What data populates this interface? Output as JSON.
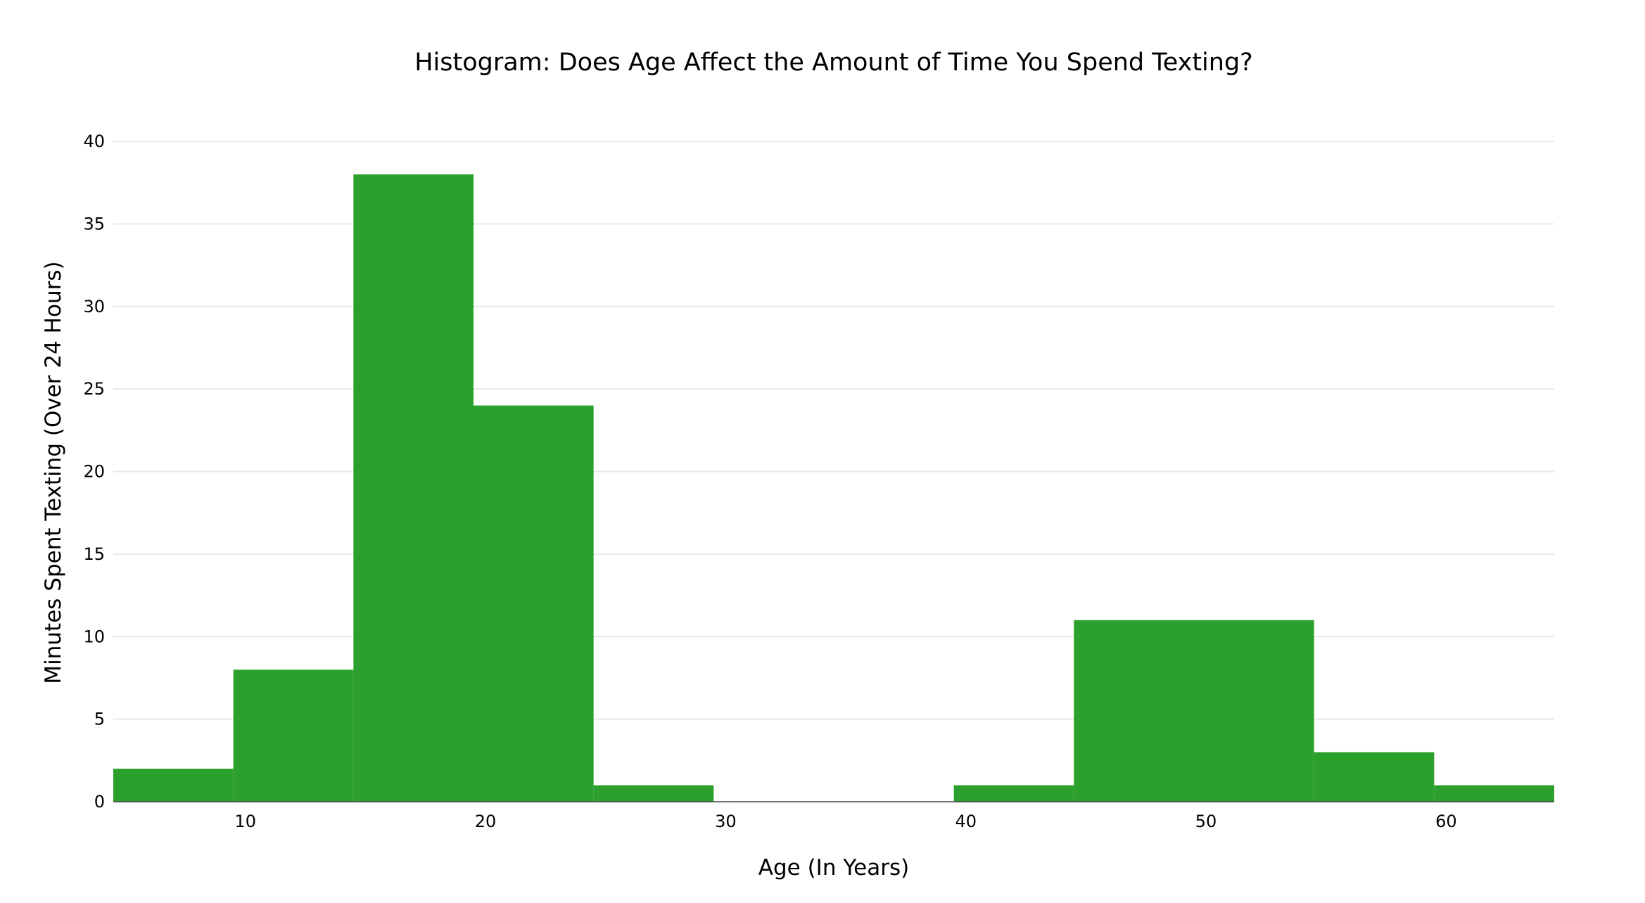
{
  "chart_data": {
    "type": "bar",
    "title": "Histogram: Does Age Affect the Amount of Time You Spend Texting?",
    "xlabel": "Age (In Years)",
    "ylabel": "Minutes Spent Texting (Over 24 Hours)",
    "xlim": [
      4.5,
      64.5
    ],
    "ylim": [
      0,
      40
    ],
    "x_ticks": [
      10,
      20,
      30,
      40,
      50,
      60
    ],
    "y_ticks": [
      0,
      5,
      10,
      15,
      20,
      25,
      30,
      35,
      40
    ],
    "grid": true,
    "bins": [
      {
        "start": 4.5,
        "end": 9.5,
        "value": 2
      },
      {
        "start": 9.5,
        "end": 14.5,
        "value": 8
      },
      {
        "start": 14.5,
        "end": 19.5,
        "value": 38
      },
      {
        "start": 19.5,
        "end": 24.5,
        "value": 24
      },
      {
        "start": 24.5,
        "end": 29.5,
        "value": 1
      },
      {
        "start": 29.5,
        "end": 34.5,
        "value": 0
      },
      {
        "start": 34.5,
        "end": 39.5,
        "value": 0
      },
      {
        "start": 39.5,
        "end": 44.5,
        "value": 1
      },
      {
        "start": 44.5,
        "end": 49.5,
        "value": 11
      },
      {
        "start": 49.5,
        "end": 54.5,
        "value": 11
      },
      {
        "start": 54.5,
        "end": 59.5,
        "value": 3
      },
      {
        "start": 59.5,
        "end": 64.5,
        "value": 1
      }
    ],
    "bar_color": "#2ca02c",
    "grid_color": "#e8e8e8"
  }
}
